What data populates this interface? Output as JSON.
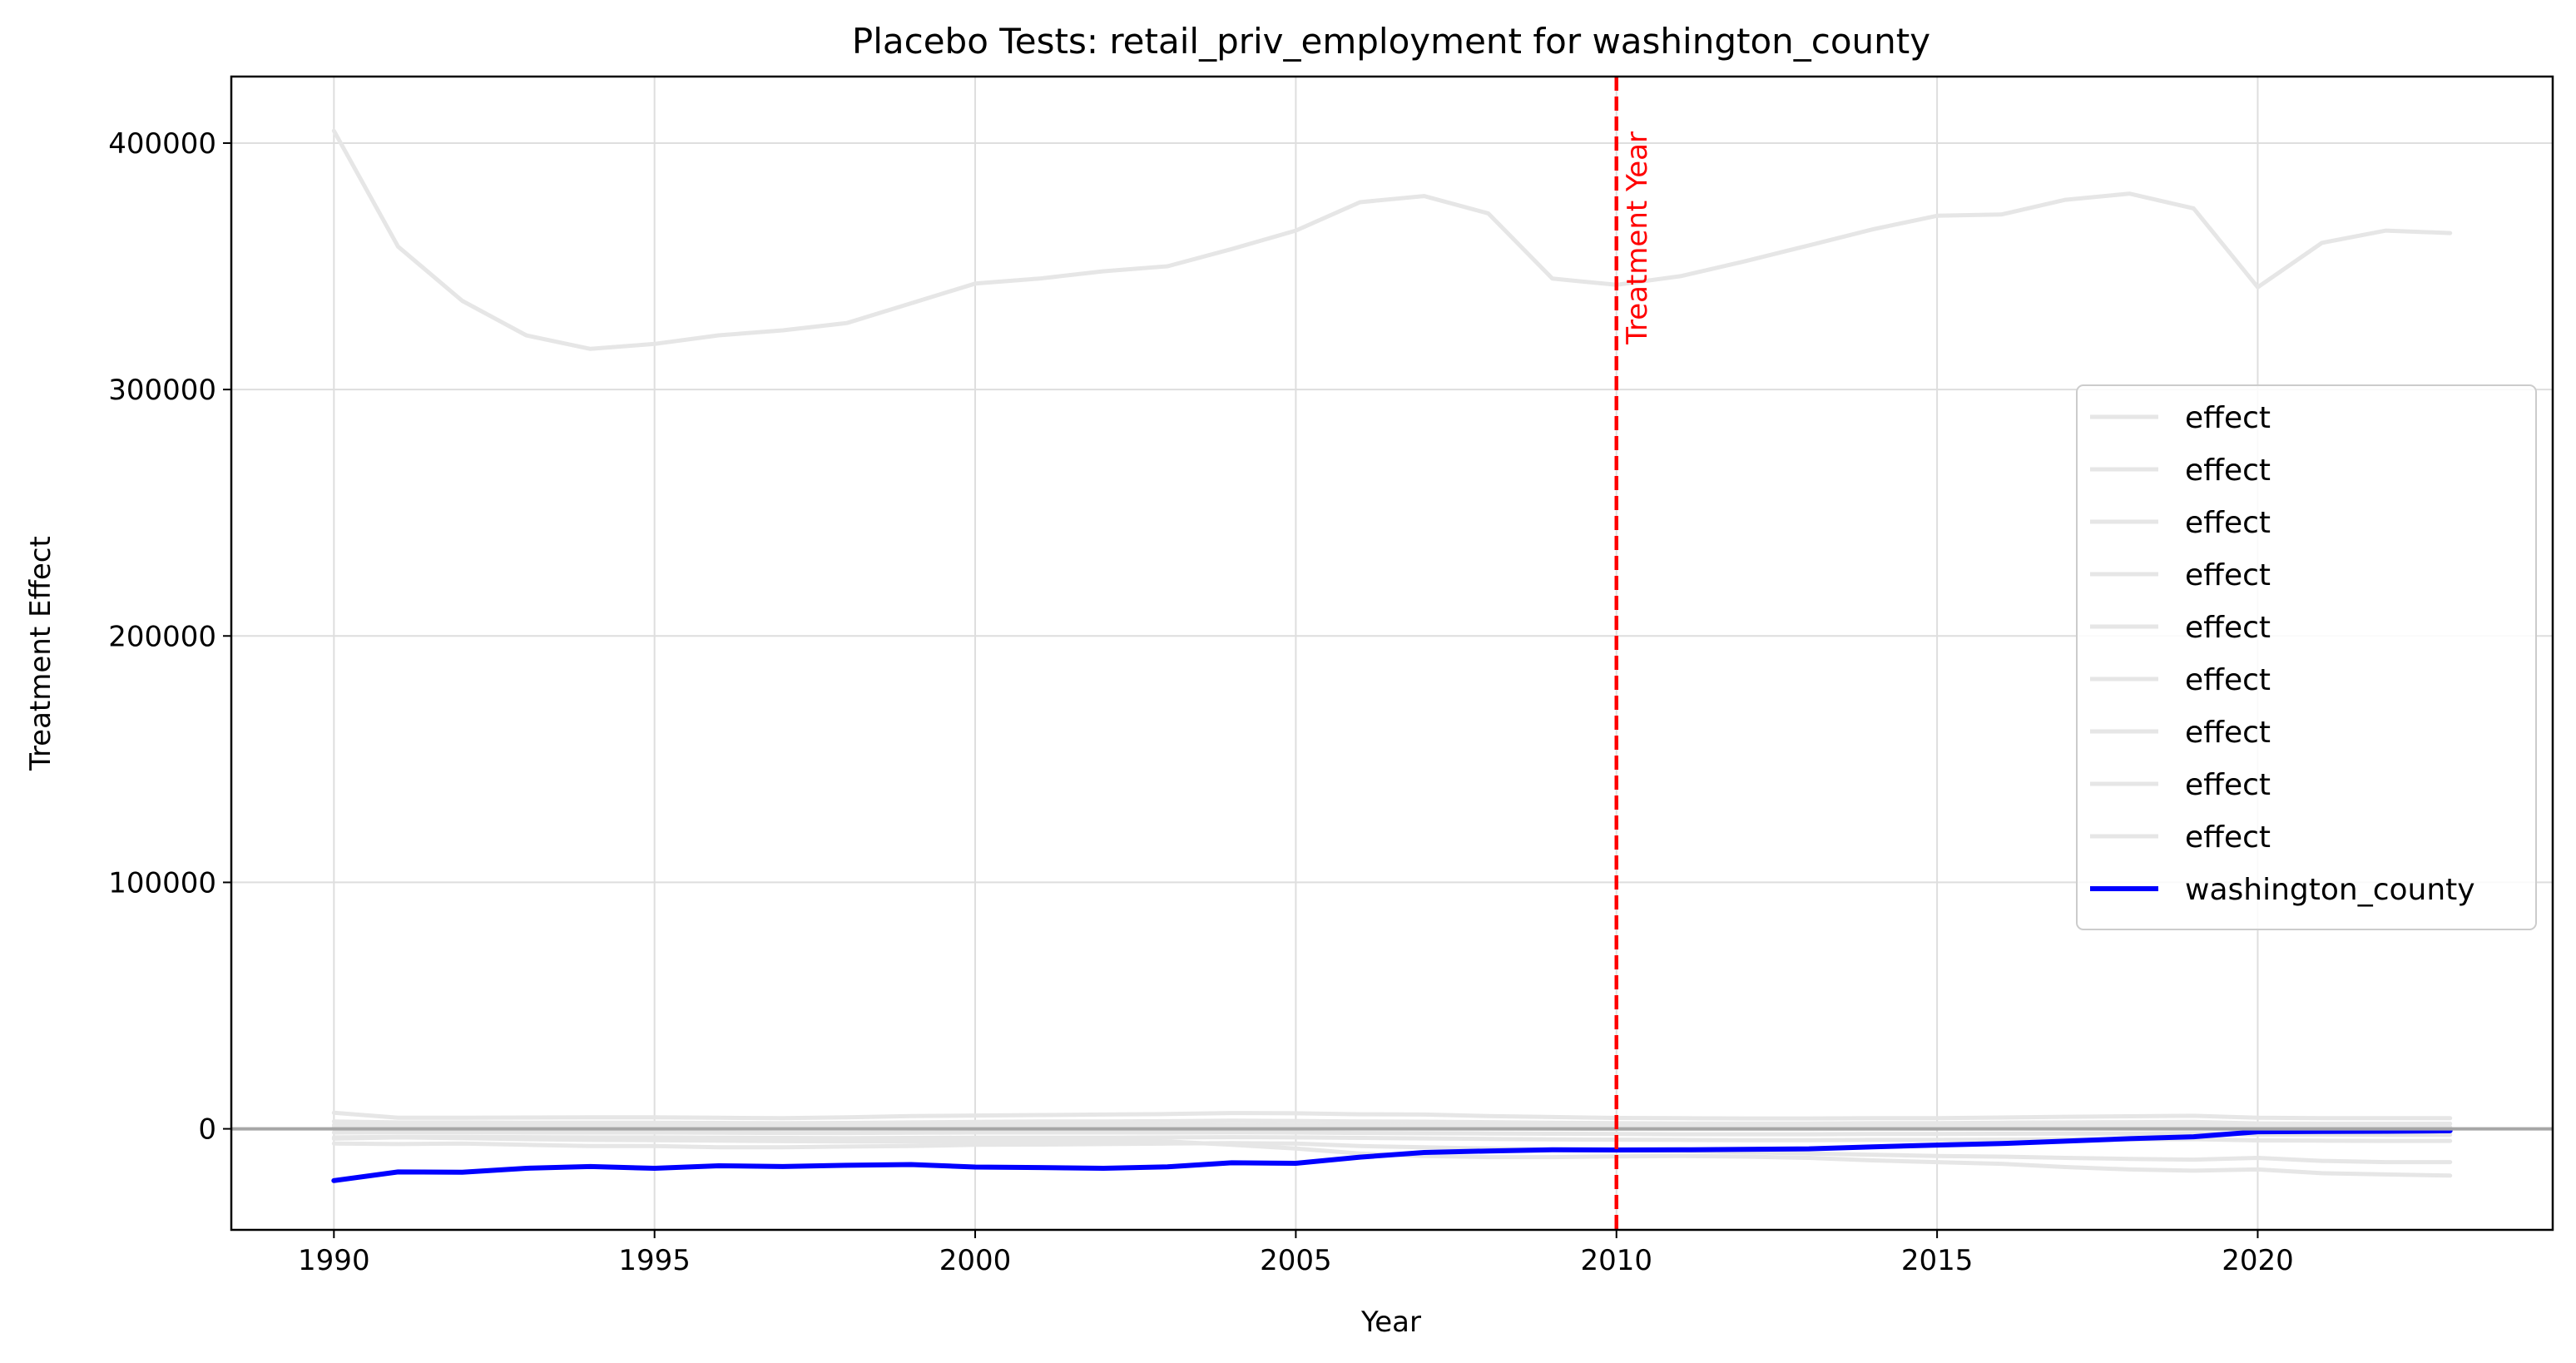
{
  "chart_data": {
    "type": "line",
    "title": "Placebo Tests: retail_priv_employment for washington_county",
    "xlabel": "Year",
    "ylabel": "Treatment Effect",
    "xlim": [
      1988.4,
      2024.6
    ],
    "ylim": [
      -41000,
      427000
    ],
    "xticks": [
      1990,
      1995,
      2000,
      2005,
      2010,
      2015,
      2020
    ],
    "yticks": [
      0,
      100000,
      200000,
      300000,
      400000
    ],
    "grid": true,
    "legend_position": "center-right",
    "zero_line": {
      "y": 0,
      "color": "#a6a6a6"
    },
    "treatment_line": {
      "x": 2010,
      "label": "Treatment Year",
      "color": "#ff0000"
    },
    "x": [
      1990,
      1991,
      1992,
      1993,
      1994,
      1995,
      1996,
      1997,
      1998,
      1999,
      2000,
      2001,
      2002,
      2003,
      2004,
      2005,
      2006,
      2007,
      2008,
      2009,
      2010,
      2011,
      2012,
      2013,
      2014,
      2015,
      2016,
      2017,
      2018,
      2019,
      2020,
      2021,
      2022,
      2023
    ],
    "series": [
      {
        "name": "effect",
        "color": "#e6e6e6",
        "linewidth": 5,
        "values": [
          405000,
          358000,
          336000,
          322000,
          316500,
          318500,
          322000,
          324000,
          327000,
          335000,
          343000,
          345000,
          348000,
          350000,
          357000,
          364500,
          376000,
          378500,
          371500,
          345000,
          342500,
          346000,
          352000,
          358500,
          365000,
          370500,
          371000,
          377000,
          379500,
          373500,
          341500,
          359500,
          364500,
          363500
        ]
      },
      {
        "name": "effect",
        "color": "#e6e6e6",
        "linewidth": 5,
        "values": [
          6500,
          4500,
          4500,
          4600,
          4700,
          4700,
          4500,
          4300,
          4700,
          5200,
          5400,
          5600,
          5800,
          6000,
          6400,
          6300,
          5900,
          5800,
          5200,
          4800,
          4400,
          4300,
          4200,
          4200,
          4300,
          4300,
          4600,
          4900,
          5100,
          5300,
          4500,
          4300,
          4300,
          4300
        ]
      },
      {
        "name": "effect",
        "color": "#e6e6e6",
        "linewidth": 5,
        "values": [
          3000,
          2600,
          2600,
          2500,
          2500,
          2500,
          2400,
          2300,
          2400,
          2600,
          2800,
          3000,
          3000,
          3100,
          3300,
          3200,
          3000,
          2900,
          2700,
          2500,
          2300,
          2200,
          2200,
          2200,
          2300,
          2300,
          2500,
          2600,
          2700,
          2800,
          2200,
          2100,
          2100,
          2100
        ]
      },
      {
        "name": "effect",
        "color": "#e6e6e6",
        "linewidth": 5,
        "values": [
          500,
          400,
          400,
          300,
          300,
          300,
          200,
          200,
          200,
          300,
          400,
          400,
          400,
          400,
          500,
          400,
          300,
          300,
          200,
          100,
          0,
          0,
          0,
          0,
          100,
          100,
          200,
          200,
          300,
          300,
          -300,
          -300,
          -300,
          -300
        ]
      },
      {
        "name": "effect",
        "color": "#e6e6e6",
        "linewidth": 5,
        "values": [
          -1500,
          -1400,
          -1400,
          -1500,
          -1500,
          -1500,
          -1600,
          -1700,
          -1700,
          -1600,
          -1500,
          -1500,
          -1500,
          -1500,
          -1400,
          -1500,
          -1700,
          -1800,
          -1900,
          -2000,
          -2100,
          -2200,
          -2200,
          -2200,
          -2100,
          -2100,
          -2000,
          -1900,
          -1900,
          -1800,
          -2300,
          -2300,
          -2400,
          -2400
        ]
      },
      {
        "name": "effect",
        "color": "#e6e6e6",
        "linewidth": 5,
        "values": [
          -3500,
          -3300,
          -3300,
          -3400,
          -3500,
          -3500,
          -3600,
          -3700,
          -3800,
          -3700,
          -3600,
          -3600,
          -3600,
          -3500,
          -3400,
          -3500,
          -3700,
          -3900,
          -4100,
          -4300,
          -4400,
          -4500,
          -4600,
          -4600,
          -4500,
          -4500,
          -4400,
          -4300,
          -4300,
          -4200,
          -4700,
          -4800,
          -4900,
          -4900
        ]
      },
      {
        "name": "effect",
        "color": "#e6e6e6",
        "linewidth": 5,
        "values": [
          -6000,
          -6200,
          -6000,
          -6500,
          -7000,
          -7000,
          -7500,
          -7500,
          -7200,
          -7000,
          -6500,
          -6400,
          -6200,
          -6000,
          -5800,
          -6000,
          -7000,
          -7500,
          -8000,
          -8500,
          -8800,
          -9000,
          -9500,
          -10000,
          -10500,
          -11000,
          -11300,
          -11800,
          -12200,
          -12500,
          -11800,
          -13000,
          -13500,
          -13500
        ]
      },
      {
        "name": "effect",
        "color": "#e6e6e6",
        "linewidth": 5,
        "values": [
          -4000,
          -3500,
          -3800,
          -4200,
          -4500,
          -4600,
          -4800,
          -5000,
          -5100,
          -5200,
          -5100,
          -5000,
          -5000,
          -5100,
          -6500,
          -8000,
          -10000,
          -11000,
          -11500,
          -11500,
          -11200,
          -11000,
          -11300,
          -11800,
          -12800,
          -13500,
          -14200,
          -15500,
          -16500,
          -17000,
          -16500,
          -18000,
          -18500,
          -19000
        ]
      },
      {
        "name": "effect",
        "color": "#e6e6e6",
        "linewidth": 5,
        "values": [
          1500,
          1300,
          1300,
          1200,
          1200,
          1200,
          1100,
          1000,
          1100,
          1200,
          1300,
          1400,
          1400,
          1500,
          1600,
          1500,
          1400,
          1300,
          1200,
          1100,
          1000,
          900,
          900,
          900,
          1000,
          1000,
          1100,
          1200,
          1300,
          1300,
          800,
          800,
          700,
          700
        ]
      },
      {
        "name": "washington_county",
        "color": "#0000ff",
        "linewidth": 6,
        "values": [
          -21000,
          -17500,
          -17600,
          -16000,
          -15300,
          -16000,
          -15000,
          -15300,
          -14800,
          -14500,
          -15500,
          -15700,
          -16000,
          -15400,
          -13800,
          -14000,
          -11500,
          -9600,
          -9000,
          -8500,
          -8600,
          -8500,
          -8300,
          -8100,
          -7300,
          -6600,
          -6000,
          -5000,
          -4000,
          -3200,
          -1200,
          -1100,
          -1000,
          -800
        ]
      }
    ]
  }
}
